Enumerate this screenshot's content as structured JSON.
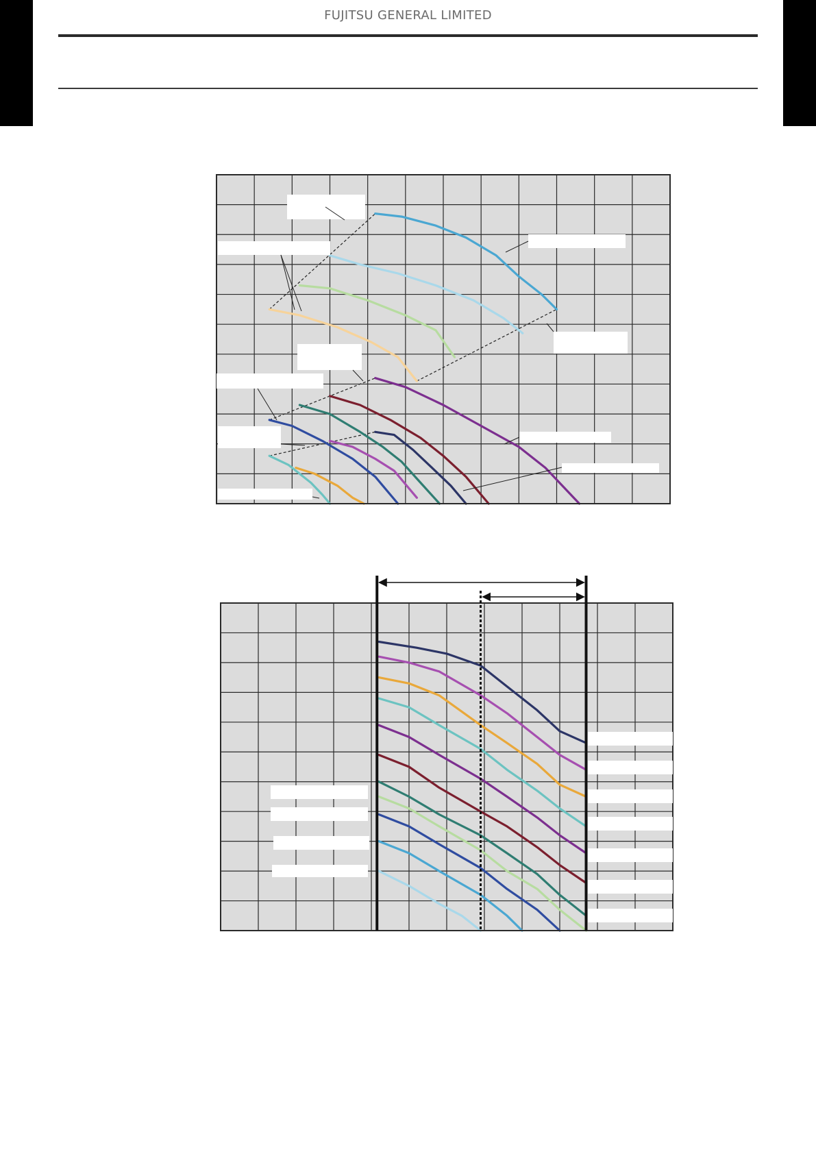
{
  "header": {
    "brand": "FUJITSU GENERAL LIMITED"
  },
  "colors": {
    "plot_bg": "#dcdcdc",
    "grid": "#2a2a2a",
    "label_box": "#ffffff",
    "navy": "#2c3566",
    "magenta": "#a64fb0",
    "orange": "#e9a83a",
    "cyan": "#6cc3c1",
    "purple": "#7c2f8f",
    "maroon": "#7b1f2e",
    "teal": "#2f7d72",
    "light_green": "#b7dca0",
    "blue": "#2f4ca0",
    "sky": "#4aa7d2",
    "light_sky": "#a9d8ea",
    "peach": "#f7d39a"
  },
  "chart_data": [
    {
      "type": "line",
      "grid": true,
      "grid_cells": [
        12,
        11
      ],
      "xlim": [
        0,
        12
      ],
      "ylim": [
        0,
        11
      ],
      "series": [
        {
          "color": "sky",
          "x": [
            4.2,
            4.9,
            5.8,
            6.6,
            7.4,
            8.0,
            8.6,
            9.0
          ],
          "y": [
            9.7,
            9.6,
            9.3,
            8.9,
            8.3,
            7.6,
            7.0,
            6.5
          ]
        },
        {
          "color": "light_sky",
          "x": [
            3.0,
            3.8,
            4.8,
            5.8,
            6.8,
            7.6,
            8.1
          ],
          "y": [
            8.3,
            8.0,
            7.7,
            7.3,
            6.8,
            6.2,
            5.7
          ]
        },
        {
          "color": "light_green",
          "x": [
            2.2,
            3.0,
            4.0,
            5.0,
            5.8,
            6.3
          ],
          "y": [
            7.3,
            7.2,
            6.8,
            6.3,
            5.8,
            4.9
          ]
        },
        {
          "color": "peach",
          "x": [
            1.4,
            2.2,
            3.2,
            4.1,
            4.8,
            5.3
          ],
          "y": [
            6.5,
            6.3,
            5.9,
            5.4,
            4.9,
            4.1
          ]
        },
        {
          "color": "purple",
          "x": [
            4.2,
            5.0,
            6.0,
            7.0,
            8.0,
            8.7,
            9.6
          ],
          "y": [
            4.2,
            3.9,
            3.3,
            2.6,
            1.9,
            1.2,
            0.0
          ]
        },
        {
          "color": "maroon",
          "x": [
            3.0,
            3.8,
            4.6,
            5.4,
            6.0,
            6.6,
            7.2
          ],
          "y": [
            3.6,
            3.3,
            2.8,
            2.2,
            1.6,
            0.9,
            0.0
          ]
        },
        {
          "color": "teal",
          "x": [
            2.2,
            3.0,
            3.8,
            4.4,
            4.9,
            5.4,
            5.9
          ],
          "y": [
            3.3,
            3.0,
            2.4,
            1.9,
            1.4,
            0.7,
            0.0
          ]
        },
        {
          "color": "navy",
          "x": [
            4.2,
            4.7,
            5.2,
            5.7,
            6.2,
            6.6
          ],
          "y": [
            2.4,
            2.3,
            1.8,
            1.2,
            0.6,
            0.0
          ]
        },
        {
          "color": "blue",
          "x": [
            1.4,
            2.0,
            2.8,
            3.6,
            4.2,
            4.8
          ],
          "y": [
            2.8,
            2.6,
            2.1,
            1.5,
            0.9,
            0.0
          ]
        },
        {
          "color": "magenta",
          "x": [
            3.0,
            3.6,
            4.2,
            4.7,
            5.3
          ],
          "y": [
            2.1,
            1.9,
            1.5,
            1.1,
            0.2
          ]
        },
        {
          "color": "orange",
          "x": [
            2.1,
            2.6,
            3.2,
            3.6,
            3.9
          ],
          "y": [
            1.2,
            1.0,
            0.6,
            0.2,
            0.0
          ]
        },
        {
          "color": "cyan",
          "x": [
            1.4,
            1.9,
            2.5,
            2.8,
            3.0
          ],
          "y": [
            1.6,
            1.3,
            0.7,
            0.3,
            0.0
          ]
        }
      ],
      "dashed_boundaries": [
        {
          "x": [
            1.4,
            4.2
          ],
          "y": [
            6.5,
            9.7
          ]
        },
        {
          "x": [
            5.3,
            9.0
          ],
          "y": [
            4.1,
            6.5
          ]
        },
        {
          "x": [
            1.4,
            4.2
          ],
          "y": [
            2.8,
            4.2
          ]
        },
        {
          "x": [
            1.4,
            4.2
          ],
          "y": [
            1.6,
            2.4
          ]
        }
      ]
    },
    {
      "type": "line",
      "grid": true,
      "grid_cells": [
        12,
        11
      ],
      "xlim": [
        0,
        12
      ],
      "ylim": [
        0,
        11
      ],
      "range_markers": {
        "outer": [
          4.15,
          9.7
        ],
        "inner_dotted": 6.9
      },
      "series": [
        {
          "color": "navy",
          "x": [
            4.2,
            5.2,
            6.0,
            6.9,
            7.6,
            8.4,
            9.0,
            9.7
          ],
          "y": [
            9.7,
            9.5,
            9.3,
            8.9,
            8.2,
            7.4,
            6.7,
            6.3
          ]
        },
        {
          "color": "magenta",
          "x": [
            4.2,
            5.0,
            5.8,
            6.9,
            7.6,
            8.4,
            9.0,
            9.7
          ],
          "y": [
            9.2,
            9.0,
            8.7,
            7.9,
            7.3,
            6.5,
            5.9,
            5.4
          ]
        },
        {
          "color": "orange",
          "x": [
            4.2,
            5.0,
            5.8,
            6.9,
            7.6,
            8.4,
            9.0,
            9.7
          ],
          "y": [
            8.5,
            8.3,
            7.9,
            6.9,
            6.3,
            5.6,
            4.9,
            4.5
          ]
        },
        {
          "color": "cyan",
          "x": [
            4.2,
            5.0,
            5.8,
            6.9,
            7.6,
            8.4,
            9.0,
            9.7
          ],
          "y": [
            7.8,
            7.5,
            6.9,
            6.1,
            5.4,
            4.7,
            4.1,
            3.5
          ]
        },
        {
          "color": "purple",
          "x": [
            4.2,
            5.0,
            5.8,
            6.9,
            7.6,
            8.4,
            9.0,
            9.7
          ],
          "y": [
            6.9,
            6.5,
            5.9,
            5.1,
            4.5,
            3.8,
            3.2,
            2.6
          ]
        },
        {
          "color": "maroon",
          "x": [
            4.2,
            5.0,
            5.8,
            6.9,
            7.6,
            8.4,
            9.0,
            9.7
          ],
          "y": [
            5.9,
            5.5,
            4.8,
            4.0,
            3.5,
            2.8,
            2.2,
            1.6
          ]
        },
        {
          "color": "teal",
          "x": [
            4.2,
            5.0,
            5.8,
            6.9,
            7.6,
            8.4,
            9.0,
            9.7
          ],
          "y": [
            5.0,
            4.5,
            3.9,
            3.2,
            2.6,
            1.9,
            1.2,
            0.5
          ]
        },
        {
          "color": "light_green",
          "x": [
            4.2,
            5.0,
            5.8,
            6.9,
            7.6,
            8.4,
            9.0,
            9.7
          ],
          "y": [
            4.5,
            4.1,
            3.5,
            2.7,
            2.0,
            1.4,
            0.7,
            0.0
          ]
        },
        {
          "color": "blue",
          "x": [
            4.2,
            5.0,
            5.8,
            6.9,
            7.6,
            8.4,
            9.0
          ],
          "y": [
            3.9,
            3.5,
            2.9,
            2.1,
            1.4,
            0.7,
            0.0
          ]
        },
        {
          "color": "sky",
          "x": [
            4.2,
            5.0,
            5.8,
            6.9,
            7.6,
            8.0
          ],
          "y": [
            3.0,
            2.6,
            2.0,
            1.2,
            0.5,
            0.0
          ]
        },
        {
          "color": "light_sky",
          "x": [
            4.2,
            5.0,
            5.8,
            6.4,
            6.9
          ],
          "y": [
            2.0,
            1.5,
            0.9,
            0.5,
            0.0
          ]
        }
      ]
    }
  ]
}
